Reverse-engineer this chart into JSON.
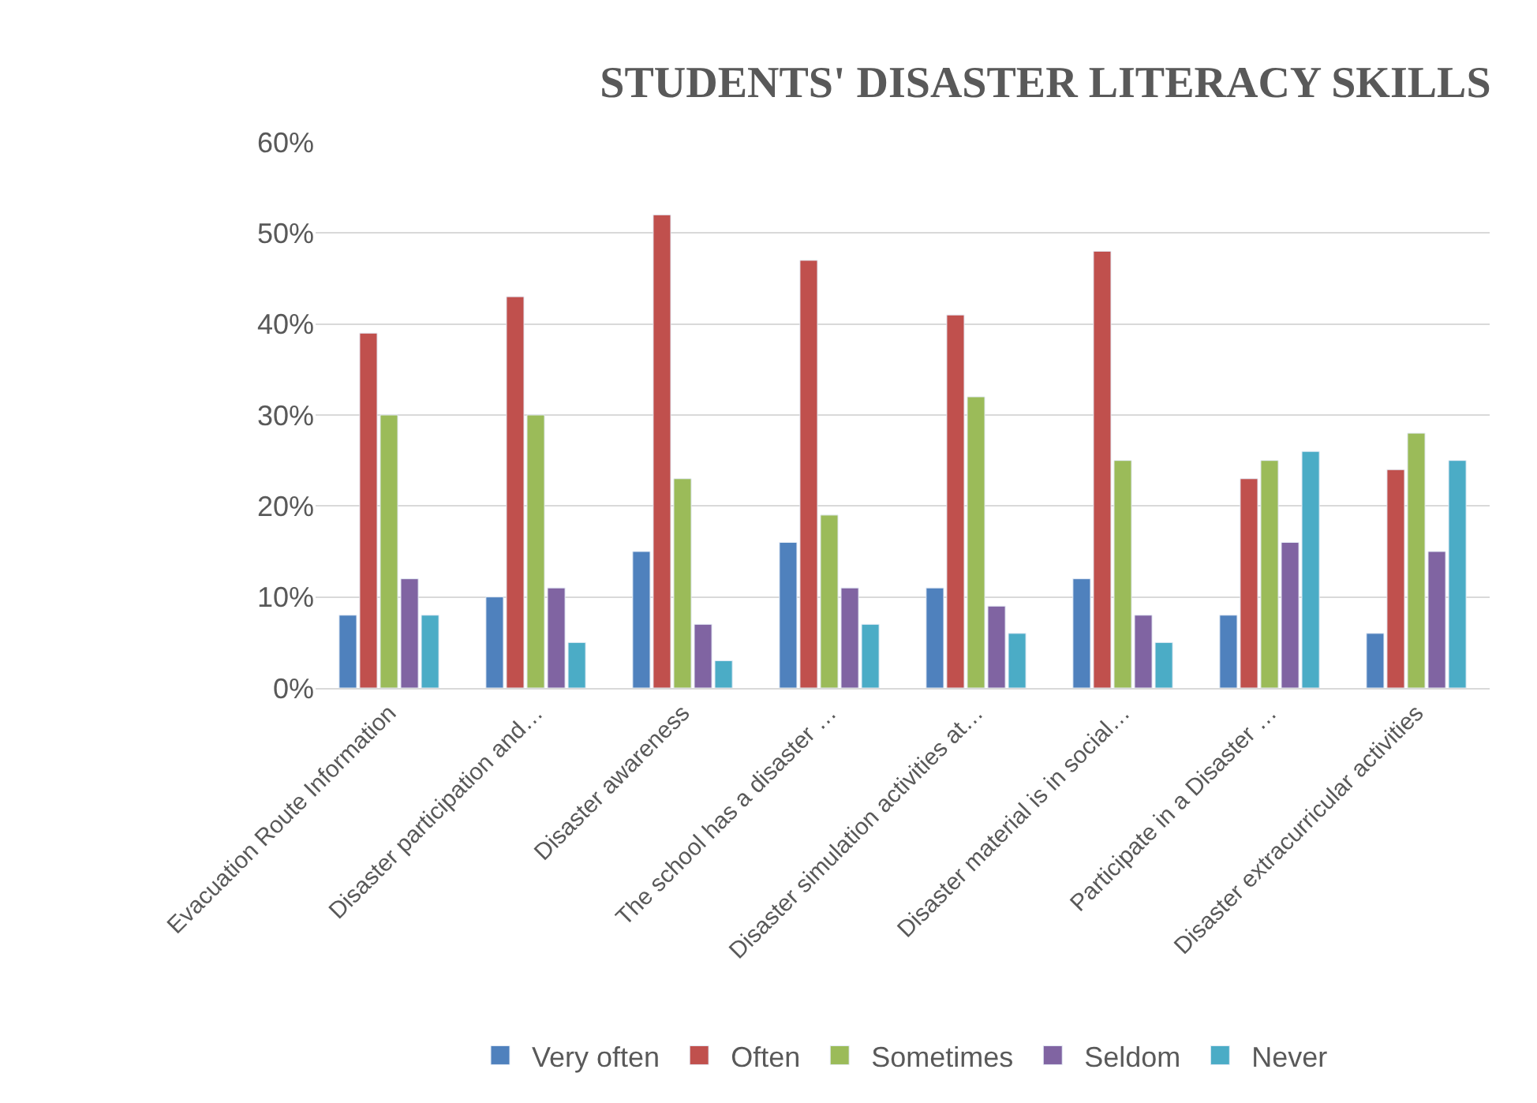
{
  "chart_data": {
    "type": "bar",
    "title": "STUDENTS' DISASTER LITERACY SKILLS",
    "categories": [
      "Evacuation Route Information",
      "Disaster participation and…",
      "Disaster awareness",
      "The school has a disaster …",
      "Disaster simulation activities at…",
      "Disaster material is in social…",
      "Participate in a Disaster …",
      "Disaster extracurricular activities"
    ],
    "series": [
      {
        "name": "Very often",
        "color": "#4f81bd",
        "values": [
          8,
          10,
          15,
          16,
          11,
          12,
          8,
          6
        ]
      },
      {
        "name": "Often",
        "color": "#c0504d",
        "values": [
          39,
          43,
          52,
          47,
          41,
          48,
          23,
          24
        ]
      },
      {
        "name": "Sometimes",
        "color": "#9bbb59",
        "values": [
          30,
          30,
          23,
          19,
          32,
          25,
          25,
          28
        ]
      },
      {
        "name": "Seldom",
        "color": "#8064a2",
        "values": [
          12,
          11,
          7,
          11,
          9,
          8,
          16,
          15
        ]
      },
      {
        "name": "Never",
        "color": "#4bacc6",
        "values": [
          8,
          5,
          3,
          7,
          6,
          5,
          26,
          25
        ]
      }
    ],
    "ylim": [
      0,
      60
    ],
    "yticks": [
      {
        "value": 0,
        "label": "0%"
      },
      {
        "value": 10,
        "label": "10%"
      },
      {
        "value": 20,
        "label": "20%"
      },
      {
        "value": 30,
        "label": "30%"
      },
      {
        "value": 40,
        "label": "40%"
      },
      {
        "value": 50,
        "label": "50%"
      },
      {
        "value": 60,
        "label": "60%"
      }
    ],
    "grid": "y",
    "legend": "bottom"
  }
}
